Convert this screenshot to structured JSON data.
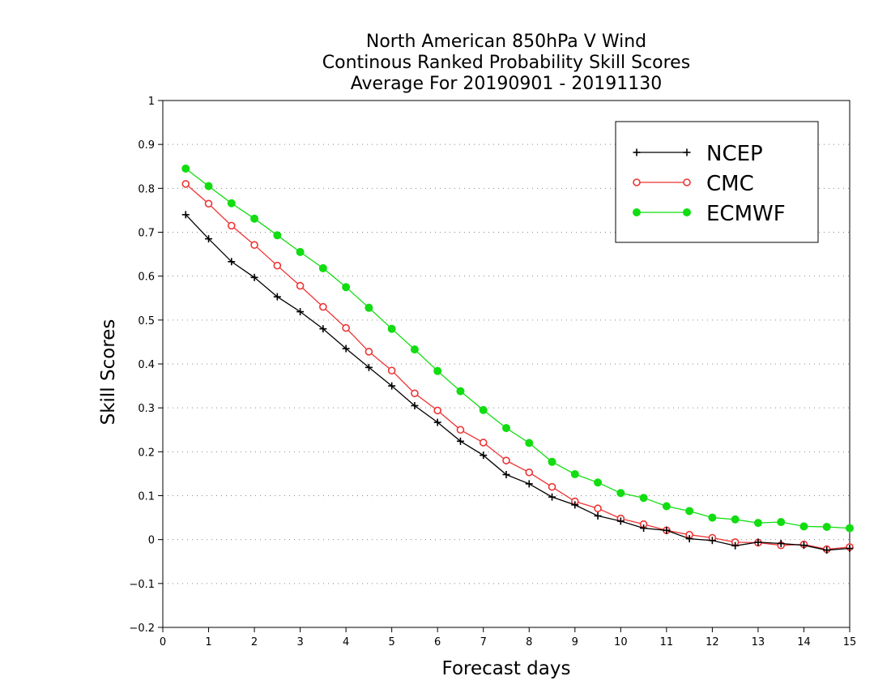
{
  "chart_data": {
    "type": "line",
    "title": [
      "North American 850hPa V Wind",
      "Continous Ranked Probability Skill Scores",
      "Average For 20190901 - 20191130"
    ],
    "xlabel": "Forecast days",
    "ylabel": "Skill Scores",
    "xlim": [
      0,
      15
    ],
    "ylim": [
      -0.2,
      1
    ],
    "xticks": [
      0,
      1,
      2,
      3,
      4,
      5,
      6,
      7,
      8,
      9,
      10,
      11,
      12,
      13,
      14,
      15
    ],
    "xtick_labels": [
      "0",
      "1",
      "2",
      "3",
      "4",
      "5",
      "6",
      "7",
      "8",
      "9",
      "10",
      "11",
      "12",
      "13",
      "14",
      "15"
    ],
    "yticks": [
      -0.2,
      -0.1,
      0,
      0.1,
      0.2,
      0.3,
      0.4,
      0.5,
      0.6,
      0.7,
      0.8,
      0.9,
      1
    ],
    "ytick_labels": [
      "−0.2",
      "−0.1",
      "0",
      "0.1",
      "0.2",
      "0.3",
      "0.4",
      "0.5",
      "0.6",
      "0.7",
      "0.8",
      "0.9",
      "1"
    ],
    "grid": "horizontal dotted",
    "legend_position": "top-right",
    "x": [
      0.5,
      1,
      1.5,
      2,
      2.5,
      3,
      3.5,
      4,
      4.5,
      5,
      5.5,
      6,
      6.5,
      7,
      7.5,
      8,
      8.5,
      9,
      9.5,
      10,
      10.5,
      11,
      11.5,
      12,
      12.5,
      13,
      13.5,
      14,
      14.5,
      15
    ],
    "series": [
      {
        "name": "NCEP",
        "color": "#000000",
        "marker": "plus",
        "values": [
          0.74,
          0.685,
          0.633,
          0.597,
          0.553,
          0.519,
          0.48,
          0.435,
          0.392,
          0.35,
          0.305,
          0.267,
          0.224,
          0.192,
          0.148,
          0.127,
          0.097,
          0.079,
          0.054,
          0.042,
          0.026,
          0.021,
          0.002,
          -0.002,
          -0.014,
          -0.006,
          -0.009,
          -0.013,
          -0.024,
          -0.02
        ]
      },
      {
        "name": "CMC",
        "color": "#ee3333",
        "marker": "open-circle",
        "values": [
          0.81,
          0.765,
          0.715,
          0.671,
          0.624,
          0.578,
          0.53,
          0.482,
          0.428,
          0.385,
          0.333,
          0.294,
          0.25,
          0.221,
          0.18,
          0.153,
          0.12,
          0.087,
          0.071,
          0.048,
          0.035,
          0.021,
          0.011,
          0.004,
          -0.006,
          -0.007,
          -0.013,
          -0.011,
          -0.022,
          -0.017
        ]
      },
      {
        "name": "ECMWF",
        "color": "#11dd11",
        "marker": "filled-circle",
        "values": [
          0.845,
          0.805,
          0.766,
          0.731,
          0.693,
          0.655,
          0.618,
          0.575,
          0.528,
          0.48,
          0.433,
          0.384,
          0.338,
          0.295,
          0.254,
          0.22,
          0.177,
          0.149,
          0.13,
          0.106,
          0.095,
          0.076,
          0.065,
          0.05,
          0.046,
          0.038,
          0.04,
          0.03,
          0.029,
          0.026
        ]
      }
    ]
  }
}
